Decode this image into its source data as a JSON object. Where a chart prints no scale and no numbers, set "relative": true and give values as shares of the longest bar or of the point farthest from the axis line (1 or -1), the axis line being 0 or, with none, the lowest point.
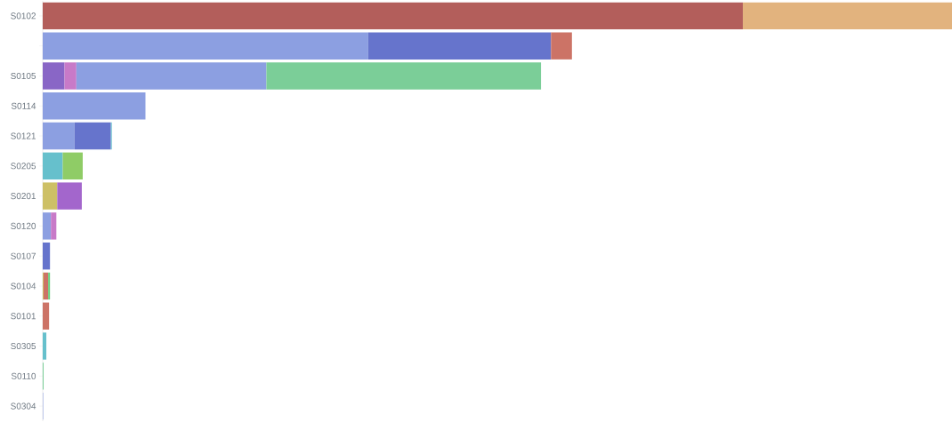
{
  "chart_data": {
    "type": "bar",
    "orientation": "horizontal",
    "stacked": true,
    "relative": true,
    "categories": [
      "S0102",
      null,
      "S0105",
      "S0114",
      "S0121",
      "S0205",
      "S0201",
      "S0120",
      "S0107",
      "S0104",
      "S0101",
      "S0305",
      "S0110",
      "S0304"
    ],
    "series": [
      {
        "values": [
          0.77,
          0.358,
          0.024,
          0.113,
          0.035,
          0.022,
          0.016,
          0.009,
          0.008,
          0.001,
          0.007,
          0.004,
          0.001,
          0.0005
        ],
        "colors": [
          "#b35e5b",
          "#8c9fe1",
          "#8966c6",
          "#8c9fe1",
          "#8c9fe1",
          "#66c0cc",
          "#cdc066",
          "#8c9fe1",
          "#6674cc",
          "#cdc066",
          "#cc7366",
          "#66c0cc",
          "#7bce98",
          "#8c9fe1"
        ]
      },
      {
        "values": [
          0.23,
          0.201,
          0.013,
          null,
          0.04,
          0.022,
          0.027,
          0.006,
          null,
          0.005,
          null,
          null,
          null,
          null
        ],
        "colors": [
          "#e2b37e",
          "#6674cc",
          "#c87ac8",
          null,
          "#6674cc",
          "#8fcc66",
          "#a366cc",
          "#c87ac8",
          null,
          "#cc7366",
          null,
          null,
          null,
          null
        ]
      },
      {
        "values": [
          null,
          0.023,
          0.209,
          null,
          0.001,
          null,
          null,
          null,
          null,
          0.002,
          null,
          null,
          null,
          null
        ],
        "colors": [
          null,
          "#cc7366",
          "#8c9fe1",
          null,
          "#66c0cc",
          null,
          null,
          null,
          null,
          "#66cc79",
          null,
          null,
          null,
          null
        ]
      },
      {
        "values": [
          null,
          null,
          0.302,
          null,
          null,
          null,
          null,
          null,
          null,
          null,
          null,
          null,
          null,
          null
        ],
        "colors": [
          null,
          null,
          "#7bce98",
          null,
          null,
          null,
          null,
          null,
          null,
          null,
          null,
          null,
          null,
          null
        ]
      }
    ]
  }
}
